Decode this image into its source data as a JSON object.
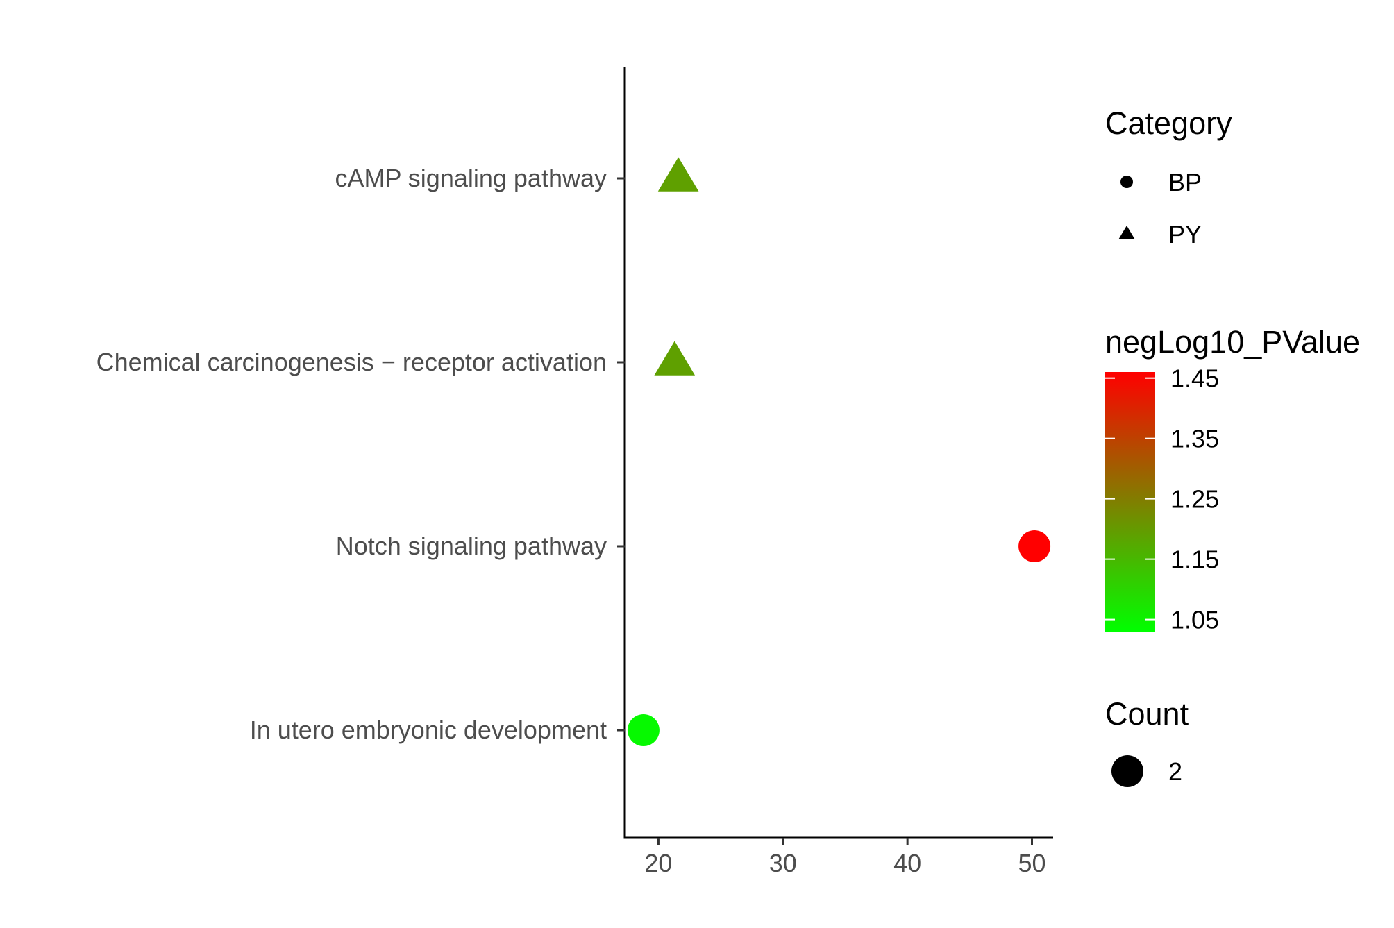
{
  "chart_data": {
    "type": "scatter",
    "title": "",
    "xlabel": "",
    "ylabel": "",
    "xlim": [
      17.3,
      51.7
    ],
    "x_ticks": [
      {
        "value": 20,
        "label": "20"
      },
      {
        "value": 30,
        "label": "30"
      },
      {
        "value": 40,
        "label": "40"
      },
      {
        "value": 50,
        "label": "50"
      }
    ],
    "categories": [
      "In utero embryonic development",
      "Notch signaling pathway",
      "Chemical carcinogenesis − receptor activation",
      "cAMP signaling pathway"
    ],
    "points": [
      {
        "term": "cAMP signaling pathway",
        "x": 21.6,
        "category": "PY",
        "neglog10_pvalue": 1.19,
        "count": 2
      },
      {
        "term": "Chemical carcinogenesis − receptor activation",
        "x": 21.3,
        "category": "PY",
        "neglog10_pvalue": 1.19,
        "count": 2
      },
      {
        "term": "Notch signaling pathway",
        "x": 50.2,
        "category": "BP",
        "neglog10_pvalue": 1.46,
        "count": 2
      },
      {
        "term": "In utero embryonic development",
        "x": 18.8,
        "category": "BP",
        "neglog10_pvalue": 1.04,
        "count": 2
      }
    ],
    "grid": false,
    "legends": {
      "shape": {
        "title": "Category",
        "items": [
          {
            "label": "BP",
            "shape": "circle"
          },
          {
            "label": "PY",
            "shape": "triangle"
          }
        ]
      },
      "color": {
        "title": "negLog10_PValue",
        "range": [
          1.03,
          1.46
        ],
        "low_color": "#00ff00",
        "high_color": "#ff0000",
        "ticks": [
          {
            "value": 1.45,
            "label": "1.45"
          },
          {
            "value": 1.35,
            "label": "1.35"
          },
          {
            "value": 1.25,
            "label": "1.25"
          },
          {
            "value": 1.15,
            "label": "1.15"
          },
          {
            "value": 1.05,
            "label": "1.05"
          }
        ]
      },
      "size": {
        "title": "Count",
        "items": [
          {
            "label": "2",
            "value": 2
          }
        ]
      },
      "placement": "right"
    }
  }
}
